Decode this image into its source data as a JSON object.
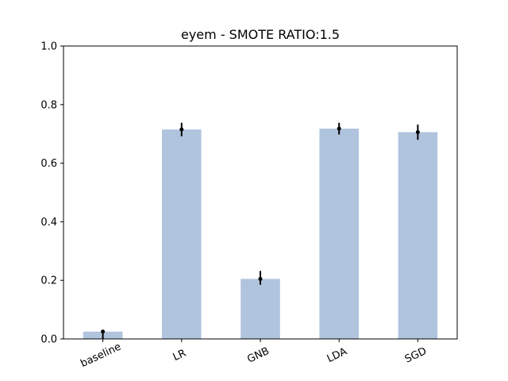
{
  "chart_data": {
    "type": "bar",
    "title": "eyem - SMOTE RATIO:1.5",
    "xlabel": "",
    "ylabel": "",
    "categories": [
      "baseline",
      "LR",
      "GNB",
      "LDA",
      "SGD"
    ],
    "values": [
      0.025,
      0.715,
      0.205,
      0.718,
      0.706
    ],
    "error": [
      {
        "low": 0.0,
        "high": 0.026
      },
      {
        "low": 0.692,
        "high": 0.738
      },
      {
        "low": 0.185,
        "high": 0.232
      },
      {
        "low": 0.698,
        "high": 0.738
      },
      {
        "low": 0.68,
        "high": 0.732
      }
    ],
    "ylim": [
      0,
      1.0
    ],
    "yticks": [
      "0.0",
      "0.2",
      "0.4",
      "0.6",
      "0.8",
      "1.0"
    ],
    "grid": false,
    "colors": {
      "bar": "#b0c4de",
      "marker": "#000000",
      "axis": "#000000"
    }
  }
}
